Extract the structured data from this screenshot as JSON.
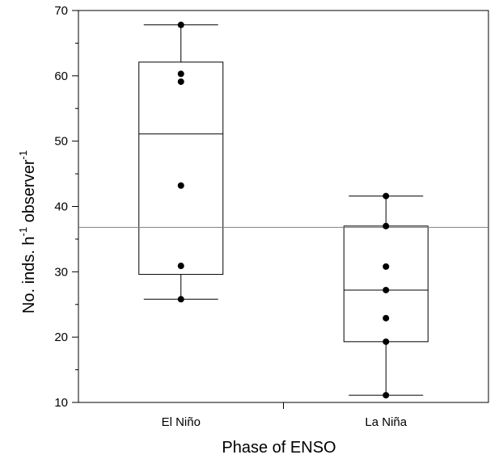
{
  "chart_data": {
    "type": "box",
    "title": "",
    "xlabel": "Phase of ENSO",
    "ylabel": {
      "parts": [
        "No. inds. h",
        "-1",
        " observer",
        "-1"
      ]
    },
    "categories": [
      "El Niño",
      "La Niña"
    ],
    "ylim": [
      10,
      70
    ],
    "yticks": [
      10,
      20,
      30,
      40,
      50,
      60,
      70
    ],
    "yminor_ticks": [
      15,
      25,
      35,
      45,
      55,
      65
    ],
    "reference_line": 36.8,
    "grid": false,
    "legend": "none",
    "boxes": [
      {
        "category": "El Niño",
        "whisker_low": 25.8,
        "q1": 29.6,
        "median": 51.1,
        "q3": 62.1,
        "whisker_high": 67.8,
        "points": [
          25.8,
          30.9,
          43.2,
          59.1,
          60.3,
          67.8
        ]
      },
      {
        "category": "La Niña",
        "whisker_low": 11.1,
        "q1": 19.3,
        "median": 27.2,
        "q3": 37.0,
        "whisker_high": 41.6,
        "points": [
          11.1,
          19.3,
          22.9,
          27.2,
          30.8,
          37.0,
          41.6
        ]
      }
    ],
    "colors": {
      "box_stroke": "#000000",
      "box_fill": "#ffffff",
      "point": "#000000",
      "reference_line": "#808080"
    }
  }
}
